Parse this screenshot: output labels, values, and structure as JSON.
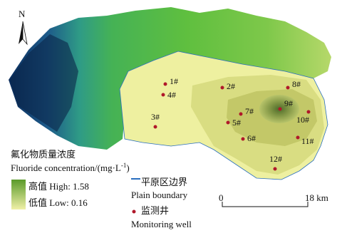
{
  "north": "N",
  "wells": [
    "1#",
    "2#",
    "3#",
    "4#",
    "5#",
    "6#",
    "7#",
    "8#",
    "9#",
    "10#",
    "11#",
    "12#"
  ],
  "legend": {
    "title_cn": "氟化物质量浓度",
    "unit_prefix": "Fluoride concentration/(mg·L",
    "unit_exponent": "-1",
    "unit_suffix": ")",
    "high": "高值 High: 1.58",
    "low": "低值 Low: 0.16",
    "boundary_cn": "平原区边界",
    "boundary_en": "Plain boundary",
    "well_cn": "监测井",
    "well_en": "Monitoring well"
  },
  "scale": {
    "start": "0",
    "end": "18 km"
  }
}
